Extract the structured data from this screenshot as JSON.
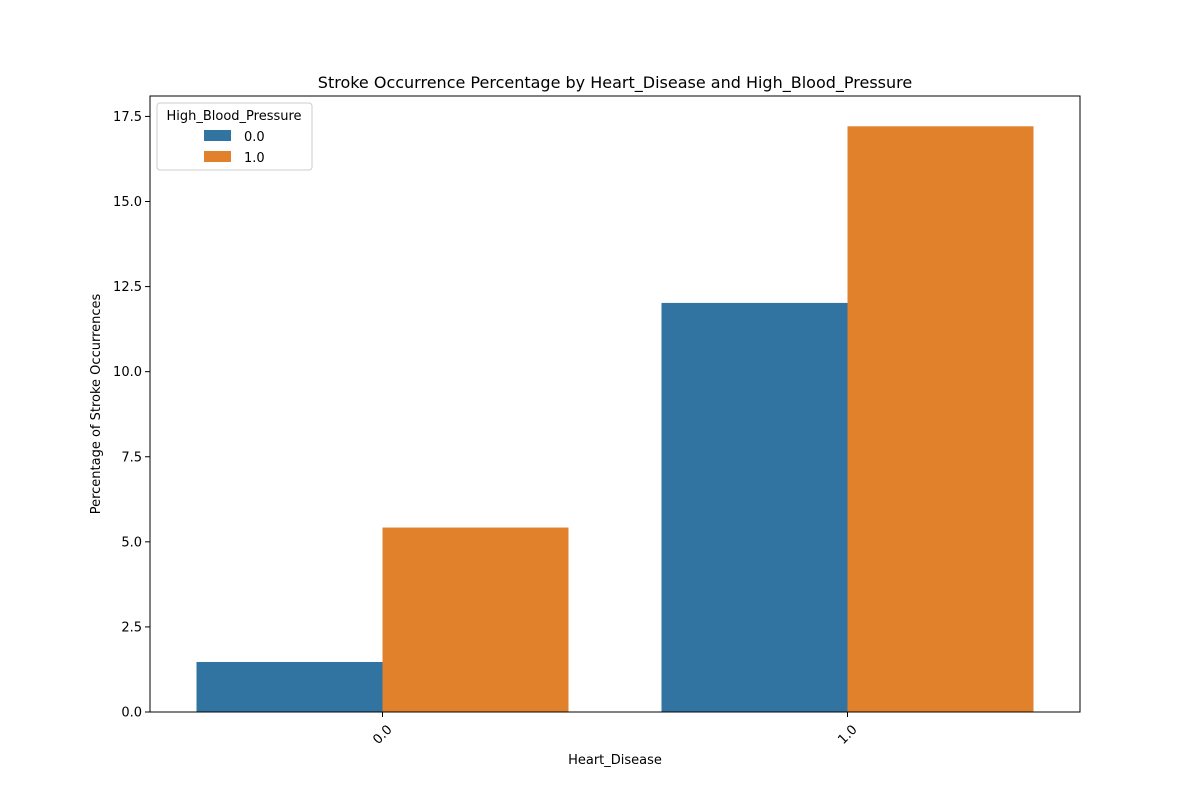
{
  "chart_data": {
    "type": "bar",
    "title": "Stroke Occurrence Percentage by Heart_Disease and High_Blood_Pressure",
    "xlabel": "Heart_Disease",
    "ylabel": "Percentage of Stroke Occurrences",
    "categories": [
      "0.0",
      "1.0"
    ],
    "series": [
      {
        "name": "0.0",
        "values": [
          1.47,
          12.02
        ],
        "color": "#3274a1"
      },
      {
        "name": "1.0",
        "values": [
          5.42,
          17.21
        ],
        "color": "#e1812c"
      }
    ],
    "ylim": [
      0,
      18.1
    ],
    "yticks": [
      0.0,
      2.5,
      5.0,
      7.5,
      10.0,
      12.5,
      15.0,
      17.5
    ],
    "ytick_labels": [
      "0.0",
      "2.5",
      "5.0",
      "7.5",
      "10.0",
      "12.5",
      "15.0",
      "17.5"
    ],
    "xtick_rotation": "45 degrees",
    "grid": false,
    "legend": {
      "title": "High_Blood_Pressure",
      "placement": "upper-left"
    }
  }
}
